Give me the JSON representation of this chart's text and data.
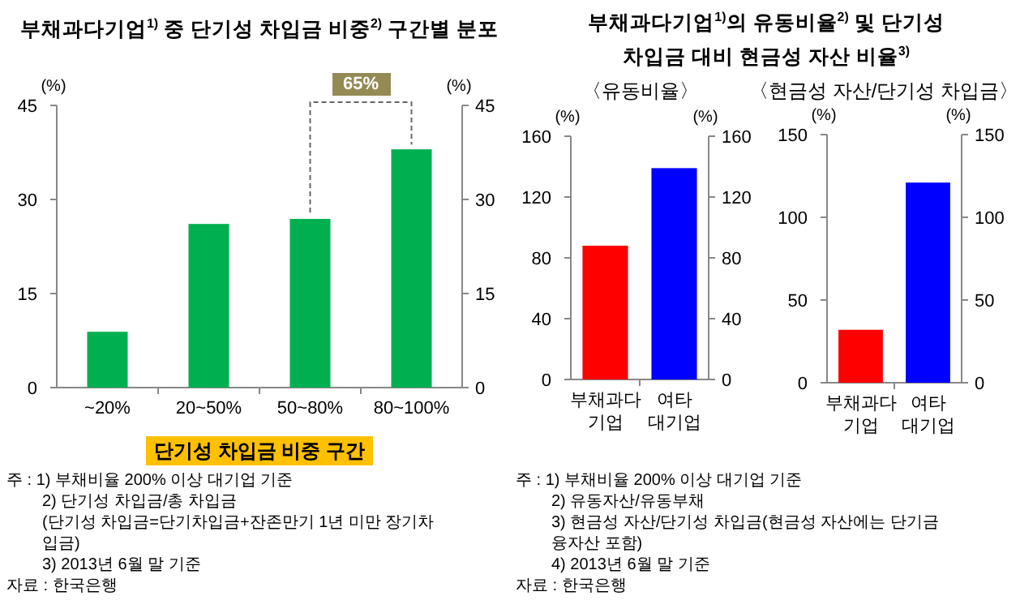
{
  "chart_data": [
    {
      "type": "bar",
      "title": "부채과다기업$^{1)}$ 중 단기성 차입금 비중$^{2)}$ 구간별 분포",
      "categories": [
        "~20%",
        "20~50%",
        "50~80%",
        "80~100%"
      ],
      "values": [
        8.9,
        26.1,
        26.9,
        38.0
      ],
      "color": "#00b050",
      "ylabel": "(%)",
      "y2label": "(%)",
      "xlabel": "단기성 차입금 비중 구간",
      "ylim": [
        0,
        45
      ],
      "yticks": [
        0,
        15,
        30,
        45
      ],
      "y2lim": [
        0,
        45
      ],
      "y2ticks": [
        0,
        15,
        30,
        45
      ],
      "annotations": [
        "65%",
        "주 : 1) 부채비율 200% 이상 대기업 기준",
        "2) 단기성 차입금/총 차입금",
        "(단기성 차입금=단기차입금+잔존만기 1년 미만 장기차입금)",
        "3) 2013년 6월 말 기준",
        "자료 : 한국은행"
      ]
    },
    {
      "type": "bar",
      "title": "부채과다기업$^{1)}$의 유동비율$^{2)}$ 및 단기성 차입금 대비 현금성 자산 비율$^{3)}$",
      "subtitle": "〈유동비율〉",
      "categories": [
        "부채과다 기업",
        "여타 대기업"
      ],
      "values": [
        88,
        139
      ],
      "colors": [
        "#ff0000",
        "#0000ff"
      ],
      "ylabel": "(%)",
      "y2label": "(%)",
      "ylim": [
        0,
        160
      ],
      "yticks": [
        0,
        40,
        80,
        120,
        160
      ],
      "y2lim": [
        0,
        160
      ],
      "y2ticks": [
        0,
        40,
        80,
        120,
        160
      ],
      "annotations": [
        "주 : 1) 부채비율 200% 이상 대기업 기준",
        "2) 유동자산/유동부채",
        "3) 현금성 자산/단기성 차입금(현금성 자산에는 단기금융자산 포함)",
        "4) 2013년 6월 말 기준",
        "자료 : 한국은행"
      ]
    },
    {
      "type": "bar",
      "subtitle": "〈현금성 자산/단기성 차입금〉",
      "categories": [
        "부채과다 기업",
        "여타 대기업"
      ],
      "values": [
        32,
        121
      ],
      "colors": [
        "#ff0000",
        "#0000ff"
      ],
      "ylabel": "(%)",
      "y2label": "(%)",
      "ylim": [
        0,
        150
      ],
      "yticks": [
        0,
        50,
        100,
        150
      ],
      "y2lim": [
        0,
        150
      ],
      "y2ticks": [
        0,
        50,
        100,
        150
      ]
    }
  ]
}
